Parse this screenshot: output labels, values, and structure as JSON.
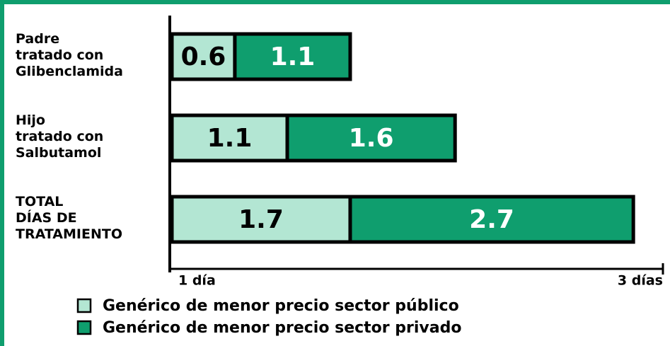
{
  "chart_data": {
    "type": "stacked-barh",
    "categories": [
      "Padre\ntratado con\nGlibenclamida",
      "Hijo\ntratado con\nSalbutamol",
      "TOTAL\nDÍAS DE\nTRATAMIENTO"
    ],
    "series": [
      {
        "name": "Genérico de menor precio sector público",
        "color": "#b3e6d3",
        "values": [
          0.6,
          1.1,
          1.7
        ]
      },
      {
        "name": "Genérico de menor precio sector privado",
        "color": "#0f9e6e",
        "values": [
          1.1,
          1.6,
          2.7
        ]
      }
    ],
    "xlim": [
      0,
      4.5
    ],
    "axis_start_label": "1 día",
    "axis_end_label": "3 días"
  }
}
